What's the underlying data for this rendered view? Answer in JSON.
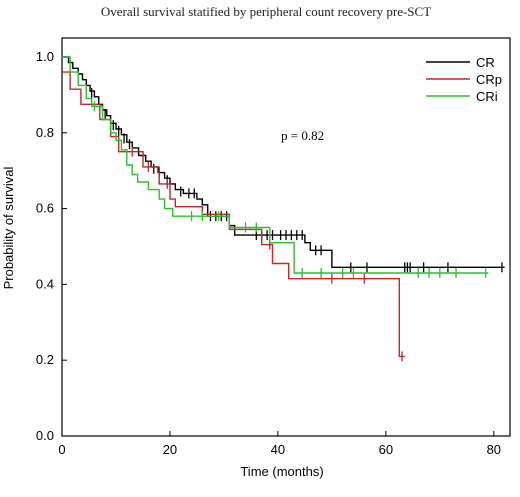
{
  "chart_data": {
    "type": "line",
    "title": "Overall survival statified by peripheral count recovery pre-SCT",
    "xlabel": "Time (months)",
    "ylabel": "Probability of survival",
    "xlim": [
      0,
      83
    ],
    "ylim": [
      0,
      1.05
    ],
    "xticks": [
      0,
      20,
      40,
      60,
      80
    ],
    "yticks": [
      0.0,
      0.2,
      0.4,
      0.6,
      0.8,
      1.0
    ],
    "grid": false,
    "legend_position": "top-right",
    "annotation": "p = 0.82",
    "series": [
      {
        "name": "CR",
        "color": "#000000",
        "steps": [
          [
            0,
            1.0
          ],
          [
            1.2,
            0.985
          ],
          [
            2.0,
            0.97
          ],
          [
            3.0,
            0.955
          ],
          [
            3.8,
            0.94
          ],
          [
            4.5,
            0.925
          ],
          [
            5.2,
            0.91
          ],
          [
            6.0,
            0.895
          ],
          [
            6.8,
            0.875
          ],
          [
            7.5,
            0.86
          ],
          [
            8.3,
            0.845
          ],
          [
            9.0,
            0.825
          ],
          [
            10.0,
            0.81
          ],
          [
            11.0,
            0.795
          ],
          [
            12.0,
            0.775
          ],
          [
            13.0,
            0.76
          ],
          [
            14.2,
            0.74
          ],
          [
            15.5,
            0.725
          ],
          [
            16.5,
            0.71
          ],
          [
            17.8,
            0.695
          ],
          [
            19.0,
            0.68
          ],
          [
            20.0,
            0.665
          ],
          [
            21.0,
            0.65
          ],
          [
            22.5,
            0.64
          ],
          [
            25.0,
            0.625
          ],
          [
            26.0,
            0.61
          ],
          [
            27.0,
            0.58
          ],
          [
            31.0,
            0.555
          ],
          [
            32.0,
            0.53
          ],
          [
            40.0,
            0.53
          ],
          [
            45.0,
            0.51
          ],
          [
            46.0,
            0.49
          ],
          [
            50.0,
            0.445
          ],
          [
            82.0,
            0.445
          ]
        ],
        "censor": [
          [
            5.5,
            0.905
          ],
          [
            8.0,
            0.85
          ],
          [
            9.5,
            0.82
          ],
          [
            10.5,
            0.805
          ],
          [
            11.5,
            0.785
          ],
          [
            12.5,
            0.77
          ],
          [
            17.0,
            0.705
          ],
          [
            18.0,
            0.695
          ],
          [
            19.5,
            0.675
          ],
          [
            22.0,
            0.645
          ],
          [
            23.5,
            0.64
          ],
          [
            24.5,
            0.64
          ],
          [
            27.5,
            0.58
          ],
          [
            28.5,
            0.58
          ],
          [
            29.5,
            0.58
          ],
          [
            30.5,
            0.58
          ],
          [
            36.0,
            0.53
          ],
          [
            37.0,
            0.53
          ],
          [
            38.0,
            0.53
          ],
          [
            39.0,
            0.53
          ],
          [
            40.5,
            0.53
          ],
          [
            41.5,
            0.53
          ],
          [
            42.5,
            0.53
          ],
          [
            43.5,
            0.53
          ],
          [
            44.5,
            0.53
          ],
          [
            47.0,
            0.49
          ],
          [
            48.0,
            0.49
          ],
          [
            53.5,
            0.445
          ],
          [
            56.5,
            0.445
          ],
          [
            63.5,
            0.445
          ],
          [
            64.0,
            0.445
          ],
          [
            64.5,
            0.445
          ],
          [
            67.0,
            0.445
          ],
          [
            71.5,
            0.445
          ],
          [
            81.5,
            0.445
          ]
        ]
      },
      {
        "name": "CRp",
        "color": "#c0282d",
        "steps": [
          [
            0,
            0.96
          ],
          [
            1.5,
            0.915
          ],
          [
            3.5,
            0.875
          ],
          [
            7.0,
            0.835
          ],
          [
            9.0,
            0.79
          ],
          [
            10.5,
            0.75
          ],
          [
            14.0,
            0.75
          ],
          [
            15.0,
            0.71
          ],
          [
            17.0,
            0.71
          ],
          [
            18.0,
            0.665
          ],
          [
            20.0,
            0.625
          ],
          [
            21.0,
            0.605
          ],
          [
            26.0,
            0.585
          ],
          [
            31.0,
            0.545
          ],
          [
            37.0,
            0.505
          ],
          [
            39.0,
            0.455
          ],
          [
            42.0,
            0.415
          ],
          [
            62.5,
            0.415
          ],
          [
            62.5,
            0.21
          ],
          [
            63.5,
            0.21
          ]
        ],
        "censor": [
          [
            13.0,
            0.75
          ],
          [
            16.0,
            0.71
          ],
          [
            19.5,
            0.665
          ],
          [
            38.5,
            0.505
          ],
          [
            50.0,
            0.415
          ],
          [
            56.0,
            0.415
          ],
          [
            63.0,
            0.21
          ]
        ]
      },
      {
        "name": "CRi",
        "color": "#2dbf2d",
        "steps": [
          [
            0,
            1.0
          ],
          [
            1.5,
            0.96
          ],
          [
            3.0,
            0.925
          ],
          [
            4.5,
            0.89
          ],
          [
            5.5,
            0.87
          ],
          [
            7.5,
            0.835
          ],
          [
            9.0,
            0.8
          ],
          [
            10.0,
            0.78
          ],
          [
            11.0,
            0.755
          ],
          [
            12.0,
            0.715
          ],
          [
            13.0,
            0.69
          ],
          [
            14.0,
            0.67
          ],
          [
            16.0,
            0.65
          ],
          [
            18.0,
            0.625
          ],
          [
            19.0,
            0.6
          ],
          [
            20.5,
            0.58
          ],
          [
            31.0,
            0.55
          ],
          [
            37.0,
            0.55
          ],
          [
            38.5,
            0.51
          ],
          [
            43.0,
            0.43
          ],
          [
            79.0,
            0.43
          ]
        ],
        "censor": [
          [
            6.0,
            0.87
          ],
          [
            24.0,
            0.58
          ],
          [
            26.0,
            0.58
          ],
          [
            29.0,
            0.58
          ],
          [
            34.0,
            0.55
          ],
          [
            36.0,
            0.55
          ],
          [
            44.5,
            0.43
          ],
          [
            48.0,
            0.43
          ],
          [
            52.0,
            0.43
          ],
          [
            54.0,
            0.43
          ],
          [
            66.0,
            0.43
          ],
          [
            68.0,
            0.43
          ],
          [
            70.0,
            0.43
          ],
          [
            73.0,
            0.43
          ],
          [
            78.5,
            0.43
          ]
        ]
      }
    ]
  }
}
